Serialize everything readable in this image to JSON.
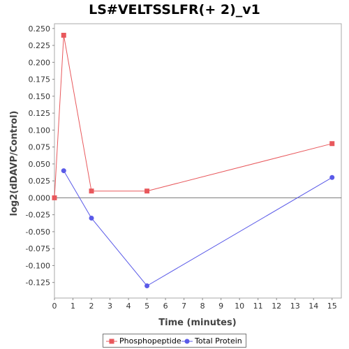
{
  "chart_data": {
    "type": "line",
    "title": "LS#VELTSSLFR(+ 2)_v1",
    "xlabel": "Time (minutes)",
    "ylabel": "log2(dDAVP/Control)",
    "xlim": [
      0,
      15.5
    ],
    "ylim": [
      -0.148,
      0.257
    ],
    "x_ticks": [
      0,
      1,
      2,
      3,
      4,
      5,
      6,
      7,
      8,
      9,
      10,
      11,
      12,
      13,
      14,
      15
    ],
    "y_ticks": [
      -0.125,
      -0.1,
      -0.075,
      -0.05,
      -0.025,
      0.0,
      0.025,
      0.05,
      0.075,
      0.1,
      0.125,
      0.15,
      0.175,
      0.2,
      0.225,
      0.25
    ],
    "y_tick_labels": [
      "-0.125",
      "-0.100",
      "-0.075",
      "-0.050",
      "-0.025",
      "0.000",
      "0.025",
      "0.050",
      "0.075",
      "0.100",
      "0.125",
      "0.150",
      "0.175",
      "0.200",
      "0.225",
      "0.250"
    ],
    "zero_line": true,
    "grid": false,
    "legend_position": "bottom",
    "series": [
      {
        "name": "Phosphopeptide",
        "color": "#e8585c",
        "marker": "square",
        "x": [
          0,
          0.5,
          2,
          5,
          15
        ],
        "y": [
          0.0,
          0.24,
          0.01,
          0.01,
          0.08
        ]
      },
      {
        "name": "Total Protein",
        "color": "#5a5ae8",
        "marker": "circle",
        "x": [
          0.5,
          2,
          5,
          15
        ],
        "y": [
          0.04,
          -0.03,
          -0.13,
          0.03
        ]
      }
    ]
  }
}
